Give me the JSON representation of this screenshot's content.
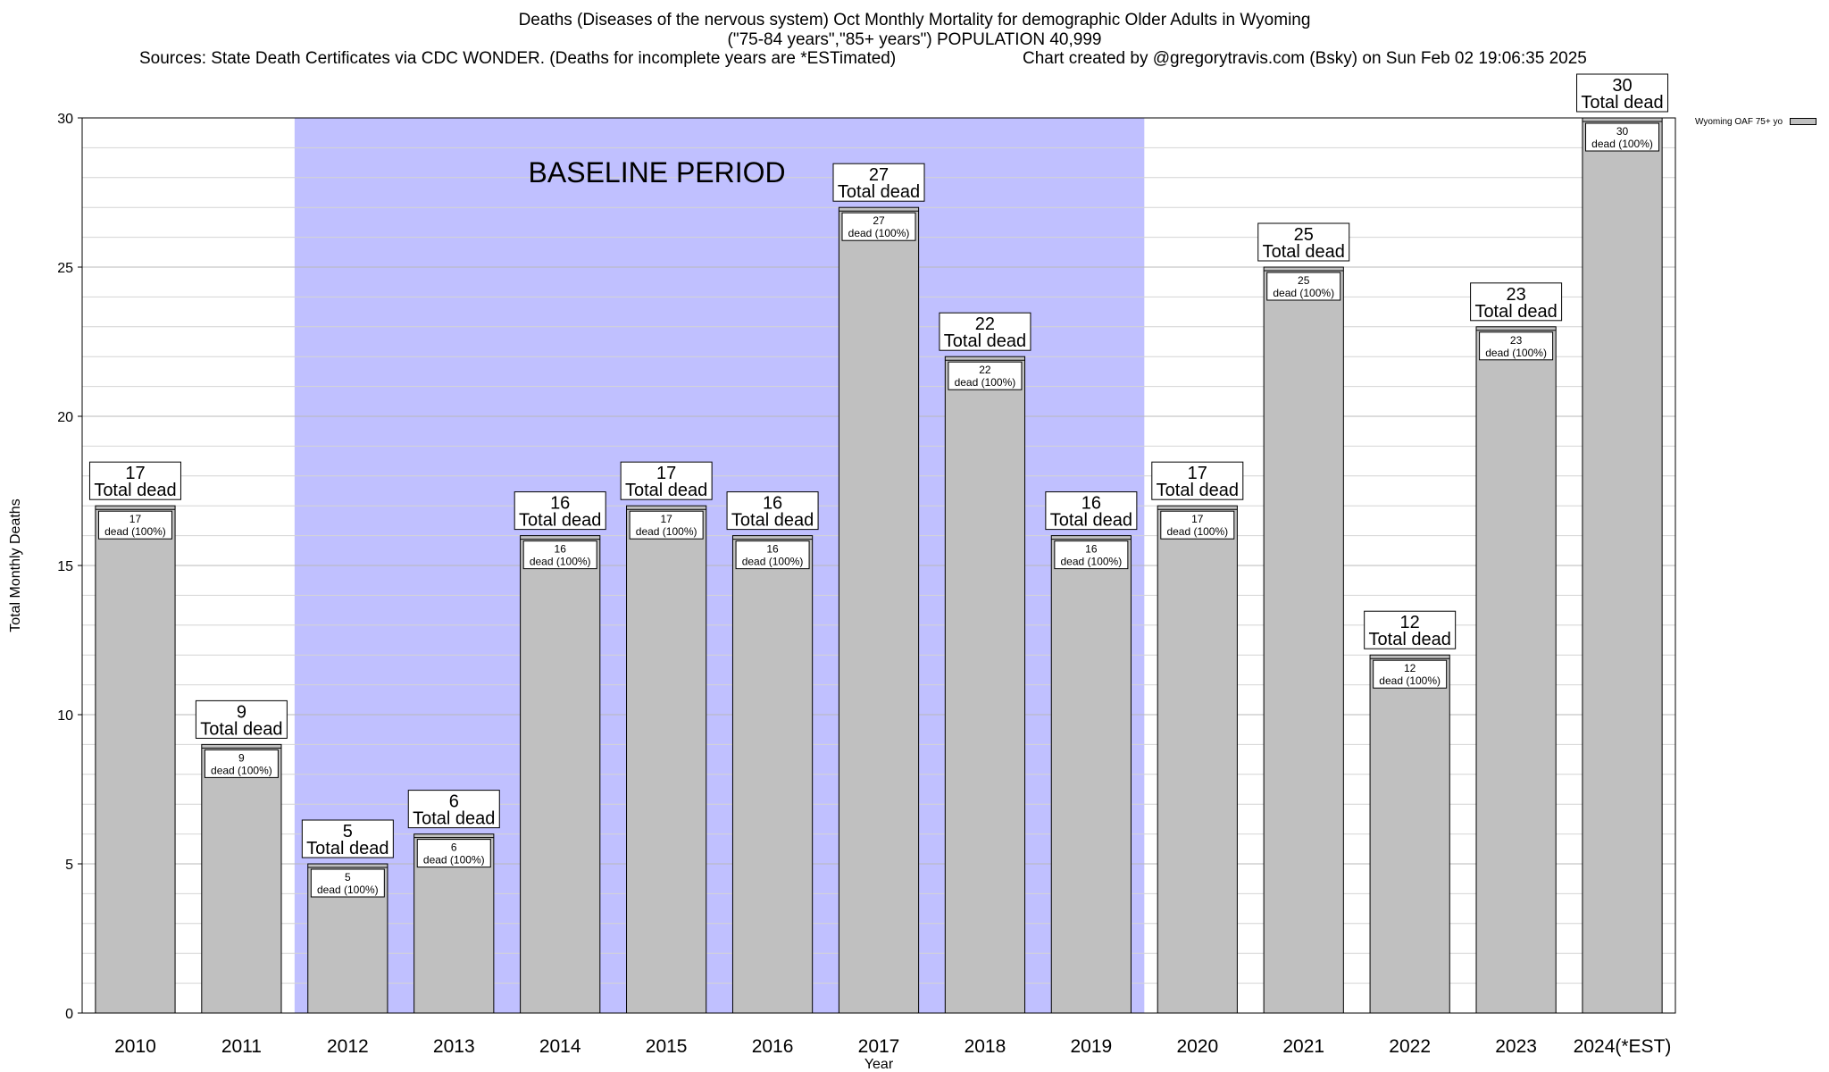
{
  "titles": {
    "line1": "Deaths (Diseases of the nervous system) Oct Monthly Mortality for demographic Older Adults in Wyoming",
    "line2": "(\"75-84 years\",\"85+ years\") POPULATION 40,999",
    "sources": "Sources: State Death Certificates via CDC WONDER. (Deaths for incomplete years are *ESTimated)",
    "credit": "Chart created by @gregorytravis.com (Bsky) on Sun Feb 02 19:06:35 2025"
  },
  "chart_data": {
    "type": "bar",
    "categories": [
      "2010",
      "2011",
      "2012",
      "2013",
      "2014",
      "2015",
      "2016",
      "2017",
      "2018",
      "2019",
      "2020",
      "2021",
      "2022",
      "2023",
      "2024(*EST)"
    ],
    "series": [
      {
        "name": "Wyoming OAF 75+ yo",
        "values": [
          17,
          9,
          5,
          6,
          16,
          17,
          16,
          27,
          22,
          16,
          17,
          25,
          12,
          23,
          30
        ]
      }
    ],
    "xlabel": "Year",
    "ylabel": "Total Monthly Deaths",
    "ylim": [
      0,
      30
    ],
    "yticks": [
      0,
      5,
      10,
      15,
      20,
      25,
      30
    ],
    "minor_grid_step": 1,
    "grid": true,
    "legend_position": "top-right",
    "bar_color": "#c0c0c0",
    "baseline_period": {
      "label": "BASELINE PERIOD",
      "from": "2012",
      "to": "2019",
      "color": "#c0c0ff"
    },
    "top_label_suffix": "Total dead",
    "inner_label_suffix": "dead (100%)"
  }
}
